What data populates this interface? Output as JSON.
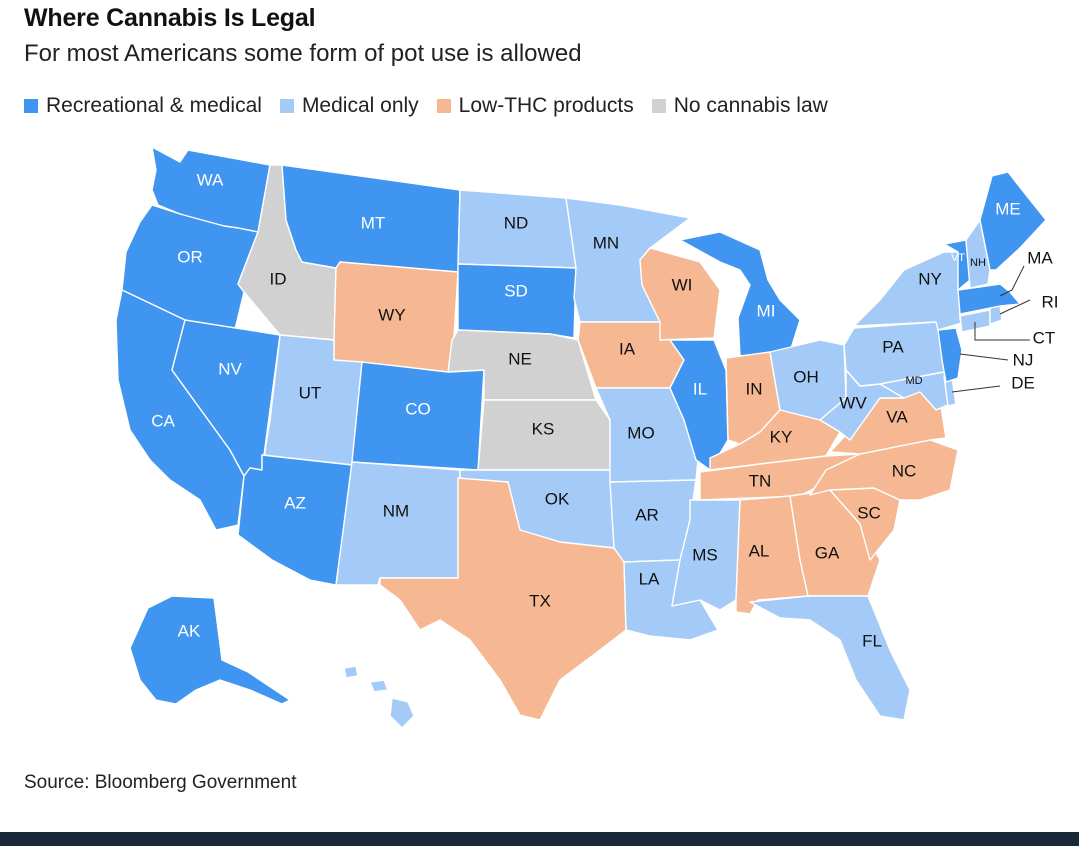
{
  "header": {
    "title": "Where Cannabis Is Legal",
    "subtitle": "For most Americans some form of pot use is allowed"
  },
  "legend": [
    {
      "key": "rec",
      "label": "Recreational & medical",
      "color": "#3f95f0"
    },
    {
      "key": "med",
      "label": "Medical only",
      "color": "#a4cbf7"
    },
    {
      "key": "low",
      "label": "Low-THC products",
      "color": "#f6b893"
    },
    {
      "key": "none",
      "label": "No cannabis law",
      "color": "#d1d1d1"
    }
  ],
  "colors": {
    "rec": "#3f95f0",
    "med": "#a4cbf7",
    "low": "#f6b893",
    "none": "#d1d1d1"
  },
  "states": {
    "WA": "rec",
    "OR": "rec",
    "CA": "rec",
    "NV": "rec",
    "ID": "none",
    "MT": "rec",
    "WY": "low",
    "UT": "med",
    "AZ": "rec",
    "CO": "rec",
    "NM": "med",
    "AK": "rec",
    "HI": "med",
    "ND": "med",
    "SD": "rec",
    "NE": "none",
    "KS": "none",
    "OK": "med",
    "TX": "low",
    "MN": "med",
    "IA": "low",
    "MO": "med",
    "AR": "med",
    "LA": "med",
    "WI": "low",
    "IL": "rec",
    "MI": "rec",
    "IN": "low",
    "OH": "med",
    "KY": "low",
    "TN": "low",
    "MS": "med",
    "AL": "low",
    "GA": "low",
    "FL": "med",
    "SC": "low",
    "NC": "low",
    "VA": "low",
    "WV": "med",
    "PA": "med",
    "NY": "med",
    "MD": "med",
    "DE": "med",
    "NJ": "rec",
    "CT": "med",
    "RI": "med",
    "MA": "rec",
    "VT": "rec",
    "NH": "med",
    "ME": "rec"
  },
  "labels": {
    "WA": "WA",
    "OR": "OR",
    "CA": "CA",
    "NV": "NV",
    "ID": "ID",
    "MT": "MT",
    "WY": "WY",
    "UT": "UT",
    "AZ": "AZ",
    "CO": "CO",
    "NM": "NM",
    "AK": "AK",
    "ND": "ND",
    "SD": "SD",
    "NE": "NE",
    "KS": "KS",
    "OK": "OK",
    "TX": "TX",
    "MN": "MN",
    "IA": "IA",
    "MO": "MO",
    "AR": "AR",
    "LA": "LA",
    "WI": "WI",
    "IL": "IL",
    "MI": "MI",
    "IN": "IN",
    "OH": "OH",
    "KY": "KY",
    "TN": "TN",
    "MS": "MS",
    "AL": "AL",
    "GA": "GA",
    "FL": "FL",
    "SC": "SC",
    "NC": "NC",
    "VA": "VA",
    "WV": "WV",
    "PA": "PA",
    "NY": "NY",
    "MD": "MD",
    "DE": "DE",
    "NJ": "NJ",
    "CT": "CT",
    "RI": "RI",
    "MA": "MA",
    "VT": "VT",
    "NH": "NH",
    "ME": "ME"
  },
  "footer": {
    "source": "Source: Bloomberg Government"
  }
}
